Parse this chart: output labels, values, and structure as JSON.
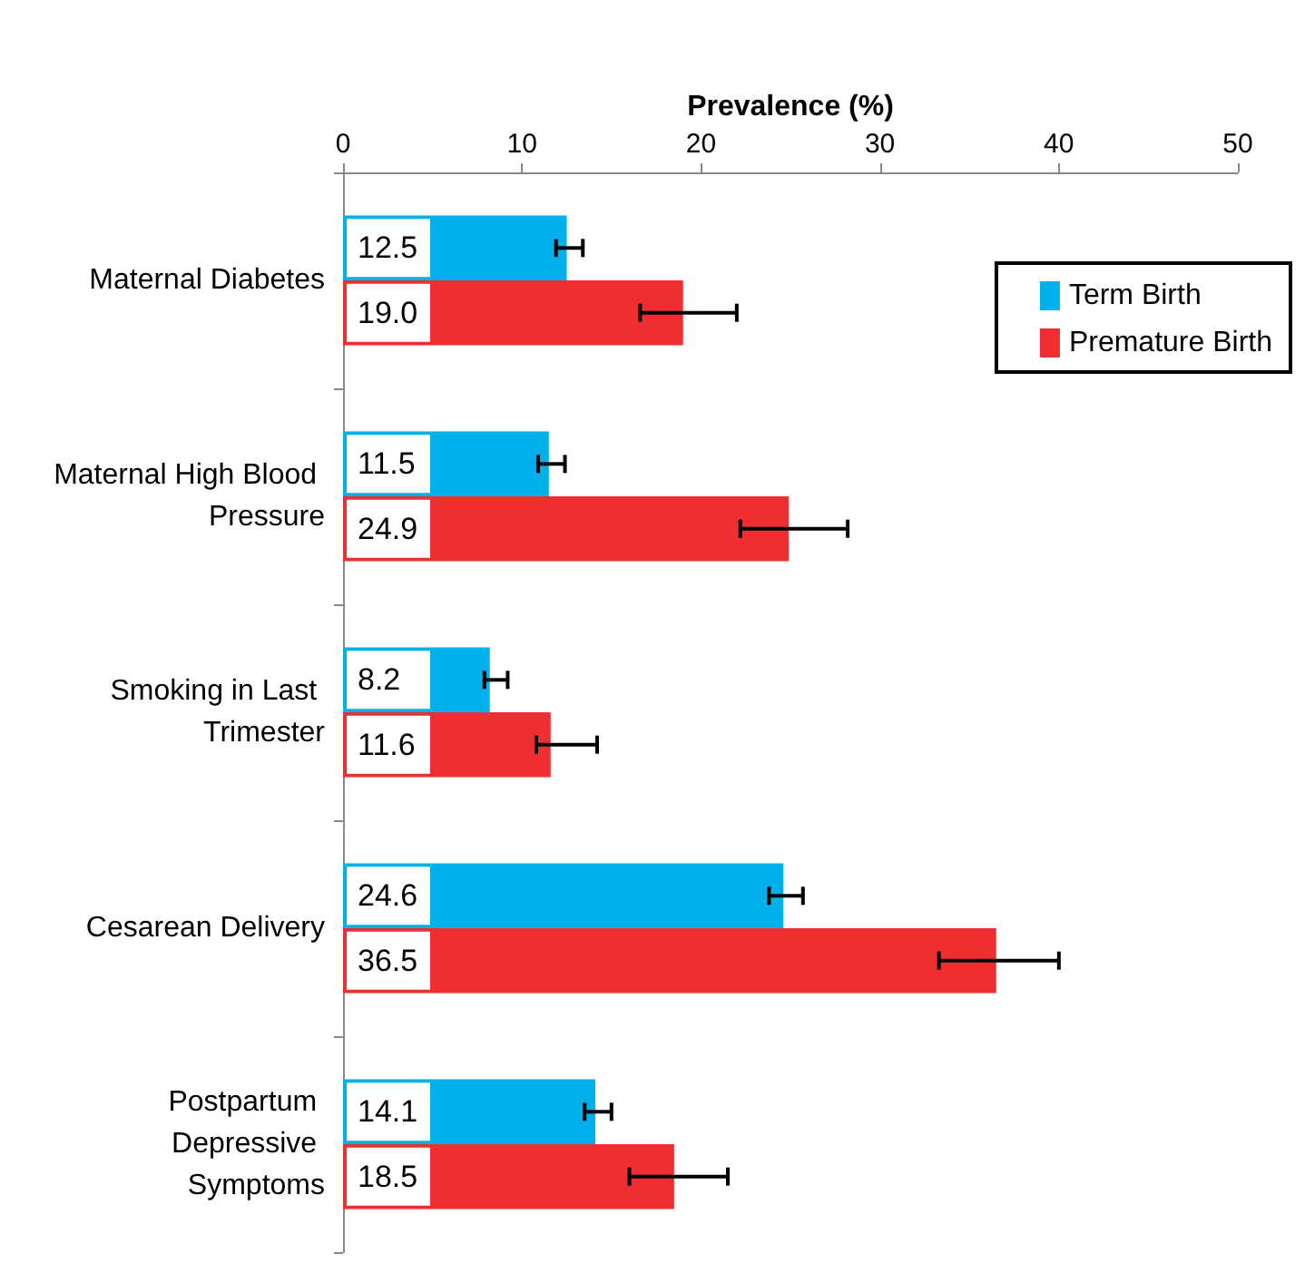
{
  "chart_data": {
    "type": "bar",
    "orientation": "horizontal",
    "xlabel": "Prevalence (%)",
    "categories": [
      "Maternal Diabetes",
      "Maternal High Blood Pressure",
      "Smoking in Last Trimester",
      "Cesarean Delivery",
      "Postpartum Depressive Symptoms"
    ],
    "series": [
      {
        "name": "Term Birth",
        "color": "#00b0ea",
        "values": [
          12.5,
          11.5,
          8.2,
          24.6,
          14.1
        ],
        "value_labels": [
          "12.5",
          "11.5",
          "8.2",
          "24.6",
          "14.1"
        ],
        "errors": [
          [
            11.9,
            13.4
          ],
          [
            10.9,
            12.4
          ],
          [
            7.9,
            9.2
          ],
          [
            23.8,
            25.7
          ],
          [
            13.5,
            15.0
          ]
        ]
      },
      {
        "name": "Premature Birth",
        "color": "#ee2e31",
        "values": [
          19.0,
          24.9,
          11.6,
          36.5,
          18.5
        ],
        "value_labels": [
          "19.0",
          "24.9",
          "11.6",
          "36.5",
          "18.5"
        ],
        "errors": [
          [
            16.6,
            22.0
          ],
          [
            22.2,
            28.2
          ],
          [
            10.8,
            14.2
          ],
          [
            33.3,
            40.0
          ],
          [
            16.0,
            21.5
          ]
        ]
      }
    ],
    "xlim": [
      0,
      50
    ],
    "xticks": [
      0,
      10,
      20,
      30,
      40,
      50
    ],
    "grid": false,
    "legend": "top right"
  }
}
